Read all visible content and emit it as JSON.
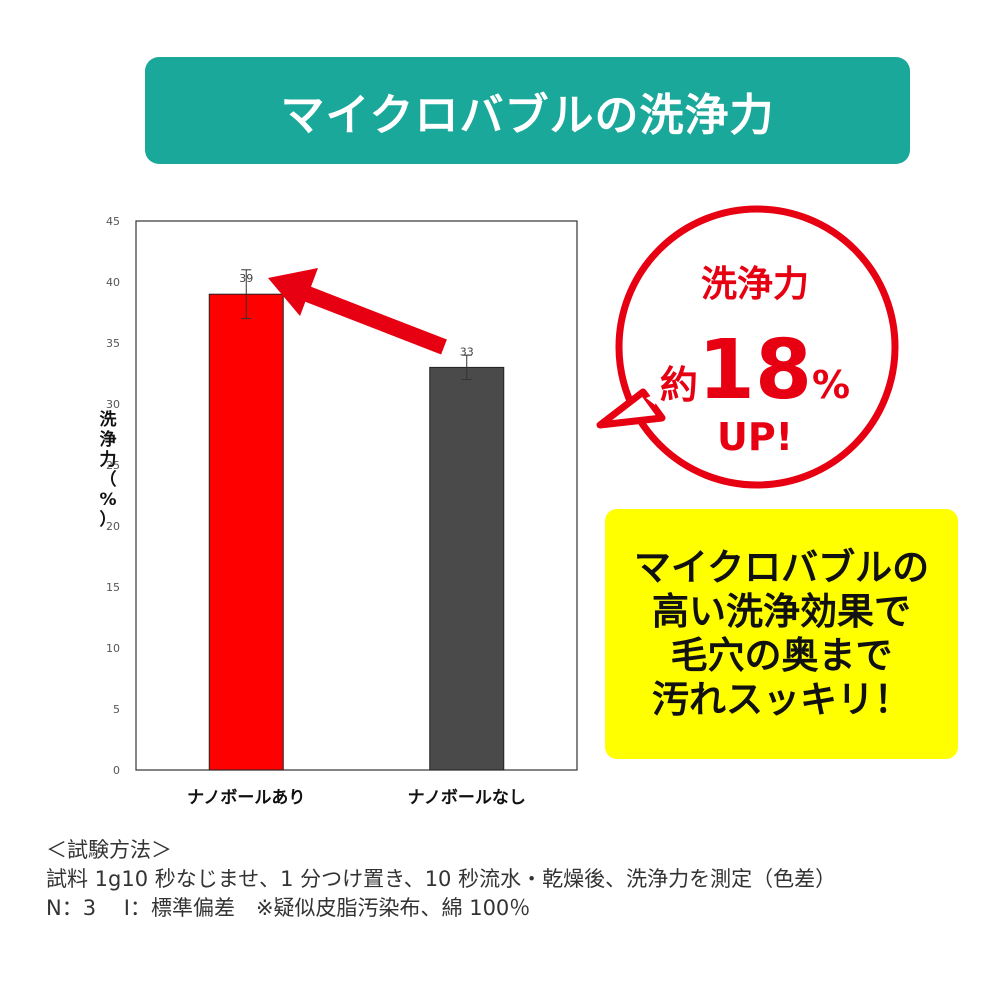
{
  "title": "マイクロバブルの洗浄力",
  "chart_data": {
    "type": "bar",
    "categories": [
      "ナノボールあり",
      "ナノボールなし"
    ],
    "values": [
      39,
      33
    ],
    "data_labels": [
      "39",
      "33"
    ],
    "error": [
      2,
      1
    ],
    "bar_colors": [
      "#ff0000",
      "#4a4a4a"
    ],
    "ylabel": "洗浄力（%）",
    "ylim": [
      0,
      45
    ],
    "yticks": [
      "0",
      "5",
      "10",
      "15",
      "20",
      "25",
      "30",
      "35",
      "40",
      "45"
    ],
    "grid": false
  },
  "callout": {
    "line1": "洗浄力",
    "prefix": "約",
    "number": "18",
    "unit": "%",
    "line3": "UP!",
    "color": "#e60012"
  },
  "yellow_box": {
    "lines": [
      "マイクロバブルの",
      "高い洗浄効果で",
      "毛穴の奥まで",
      "汚れスッキリ！"
    ]
  },
  "method": {
    "heading": "＜試験方法＞",
    "line1": "試料 1g10 秒なじませ、1 分つけ置き、10 秒流水・乾燥後、洗浄力を測定（色差）",
    "line2": "N：3　 I：標準偏差　※疑似皮脂汚染布、綿 100％"
  }
}
